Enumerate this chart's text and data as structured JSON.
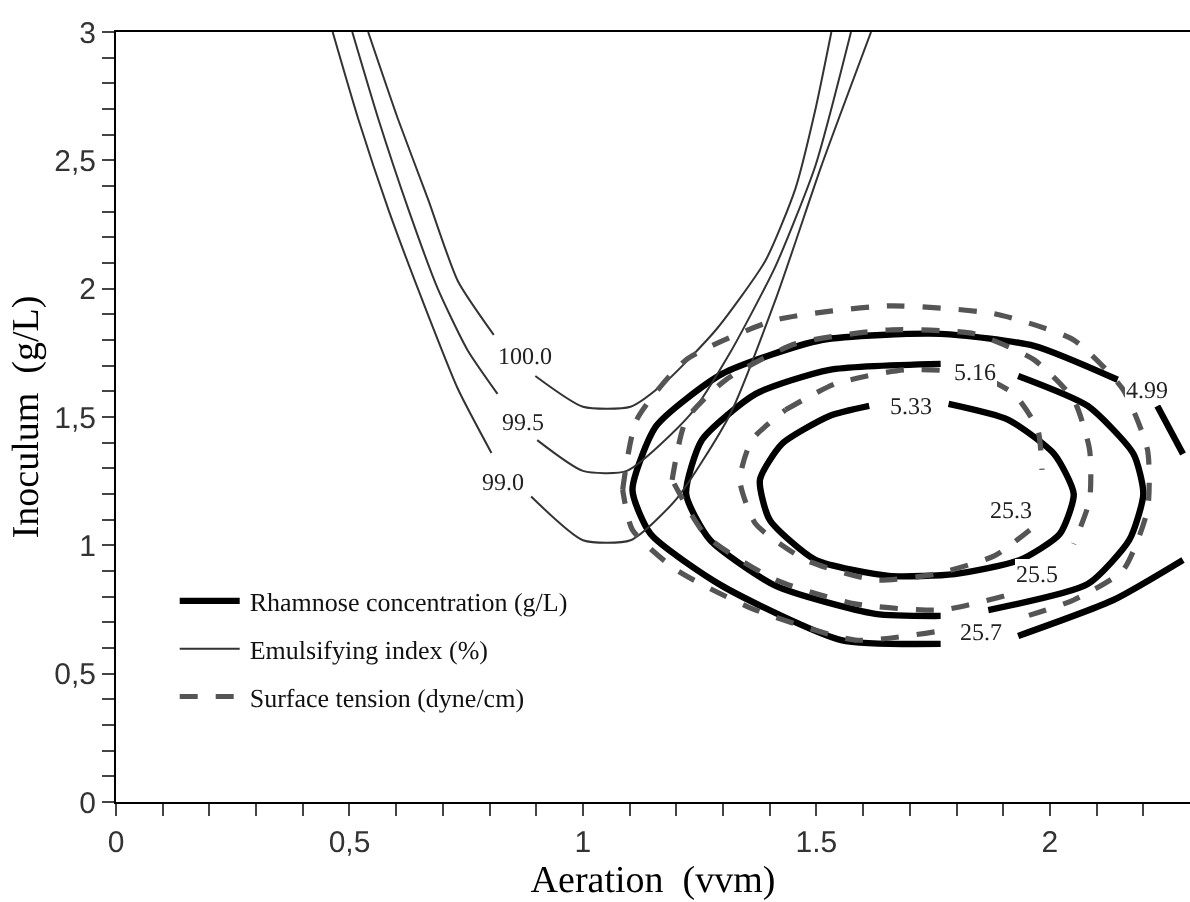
{
  "chart_data": {
    "type": "line",
    "xlabel": "Aeration  (vvm)",
    "ylabel": "Inoculum  (g/L)",
    "xlim": [
      0,
      2.3
    ],
    "ylim": [
      0,
      3
    ],
    "xticks": [
      0,
      {
        "value": 0.1,
        "label": null
      },
      {
        "value": 0.2,
        "label": null
      },
      {
        "value": 0.3,
        "label": null
      },
      {
        "value": 0.4,
        "label": null
      },
      {
        "value": 0.5,
        "label": "0,5"
      },
      {
        "value": 0.6,
        "label": null
      },
      {
        "value": 0.7,
        "label": null
      },
      {
        "value": 0.8,
        "label": null
      },
      {
        "value": 0.9,
        "label": null
      },
      1,
      {
        "value": 1.1,
        "label": null
      },
      {
        "value": 1.2,
        "label": null
      },
      {
        "value": 1.3,
        "label": null
      },
      {
        "value": 1.4,
        "label": null
      },
      {
        "value": 1.5,
        "label": "1.5"
      },
      {
        "value": 1.6,
        "label": null
      },
      {
        "value": 1.7,
        "label": null
      },
      {
        "value": 1.8,
        "label": null
      },
      {
        "value": 1.9,
        "label": null
      },
      2,
      {
        "value": 2.1,
        "label": null
      },
      {
        "value": 2.2,
        "label": null
      }
    ],
    "yticks": [
      0,
      {
        "value": 0.1,
        "label": null
      },
      {
        "value": 0.2,
        "label": null
      },
      {
        "value": 0.3,
        "label": null
      },
      {
        "value": 0.4,
        "label": null
      },
      {
        "value": 0.5,
        "label": "0,5"
      },
      {
        "value": 0.6,
        "label": null
      },
      {
        "value": 0.7,
        "label": null
      },
      {
        "value": 0.8,
        "label": null
      },
      {
        "value": 0.9,
        "label": null
      },
      1,
      {
        "value": 1.1,
        "label": null
      },
      {
        "value": 1.2,
        "label": null
      },
      {
        "value": 1.3,
        "label": null
      },
      {
        "value": 1.4,
        "label": null
      },
      {
        "value": 1.5,
        "label": "1,5"
      },
      {
        "value": 1.6,
        "label": null
      },
      {
        "value": 1.7,
        "label": null
      },
      {
        "value": 1.8,
        "label": null
      },
      {
        "value": 1.9,
        "label": null
      },
      2,
      {
        "value": 2.1,
        "label": null
      },
      {
        "value": 2.2,
        "label": null
      },
      {
        "value": 2.3,
        "label": null
      },
      {
        "value": 2.4,
        "label": null
      },
      {
        "value": 2.5,
        "label": "2,5"
      },
      {
        "value": 2.6,
        "label": null
      },
      {
        "value": 2.7,
        "label": null
      },
      {
        "value": 2.8,
        "label": null
      },
      {
        "value": 2.9,
        "label": null
      },
      3
    ],
    "legend": "bottom left",
    "marker": "none",
    "series": [
      {
        "name": "Rhamnose concentration (g/L)",
        "color": "#000000",
        "line_style": "solid",
        "x": [
          1.783,
          1.911,
          2.009,
          2.051,
          2.021,
          1.936,
          1.796,
          1.655,
          1.498,
          1.4,
          1.379,
          1.426,
          1.528,
          1.613
        ],
        "values": [
          1.551,
          1.489,
          1.356,
          1.2,
          1.044,
          0.943,
          0.888,
          0.881,
          0.943,
          1.099,
          1.255,
          1.395,
          1.504,
          1.543
        ]
      },
      {
        "color": "#000000",
        "line_style": "solid",
        "x": [
          1.932,
          2.081,
          2.179,
          2.2,
          2.17,
          2.081,
          1.868,
          null,
          1.766,
          1.626,
          1.413,
          1.272,
          1.221,
          1.255,
          1.37,
          1.528,
          1.766
        ],
        "values": [
          1.66,
          1.543,
          1.356,
          1.2,
          1.021,
          0.849,
          0.748,
          null,
          0.725,
          0.733,
          0.842,
          1.021,
          1.2,
          1.411,
          1.59,
          1.684,
          1.707
        ]
      },
      {
        "color": "#000000",
        "line_style": "solid",
        "x": [
          2.23,
          2.285,
          null,
          2.285,
          2.136,
          1.932,
          null,
          1.766,
          1.553,
          1.298,
          1.145,
          1.106,
          1.157,
          1.298,
          1.511,
          1.766,
          1.966,
          2.145
        ],
        "values": [
          1.543,
          1.356,
          null,
          0.943,
          0.787,
          0.647,
          null,
          0.616,
          0.631,
          0.842,
          1.044,
          1.216,
          1.465,
          1.668,
          1.8,
          1.824,
          1.777,
          1.645
        ]
      },
      {
        "name": "Emulsifying index (%)",
        "color": "#333333",
        "line_style": "solid",
        "x": [
          0.54,
          0.604,
          0.668,
          0.732,
          0.809,
          null,
          0.898,
          1.0,
          1.102,
          1.179,
          1.285,
          1.391,
          1.455,
          1.498,
          1.532
        ],
        "values": [
          3.0,
          2.66,
          2.35,
          2.03,
          1.82,
          null,
          1.66,
          1.54,
          1.54,
          1.64,
          1.84,
          2.11,
          2.39,
          2.7,
          3.0
        ]
      },
      {
        "color": "#333333",
        "line_style": "solid",
        "x": [
          0.506,
          0.562,
          0.626,
          0.689,
          0.753,
          0.817,
          null,
          0.902,
          1.0,
          1.094,
          1.23,
          1.315,
          1.413,
          1.498,
          1.574
        ],
        "values": [
          3.0,
          2.66,
          2.31,
          2.0,
          1.76,
          1.59,
          null,
          1.41,
          1.29,
          1.29,
          1.51,
          1.75,
          2.09,
          2.48,
          3.0
        ]
      },
      {
        "color": "#333333",
        "line_style": "solid",
        "x": [
          0.464,
          0.519,
          0.583,
          0.655,
          0.732,
          0.804,
          null,
          0.889,
          1.0,
          1.102,
          1.2,
          1.315,
          1.413,
          1.511,
          1.617
        ],
        "values": [
          3.0,
          2.66,
          2.31,
          1.96,
          1.61,
          1.36,
          null,
          1.19,
          1.02,
          1.02,
          1.18,
          1.51,
          1.96,
          2.48,
          3.0
        ]
      },
      {
        "name": "Surface tension (dyne/cm)",
        "color": "#555555",
        "line_style": "dashed",
        "x": [
          1.434,
          1.54,
          1.689,
          1.838,
          1.923,
          1.974,
          1.983,
          null,
          1.957,
          1.881,
          1.753,
          1.626,
          1.477,
          1.37,
          1.336,
          1.362,
          1.434
        ],
        "values": [
          1.528,
          1.629,
          1.684,
          1.668,
          1.59,
          1.45,
          1.294,
          null,
          1.06,
          0.959,
          0.888,
          0.865,
          0.943,
          1.083,
          1.255,
          1.411,
          1.528
        ]
      },
      {
        "color": "#555555",
        "line_style": "dashed",
        "x": [
          1.191,
          1.221,
          1.306,
          1.455,
          1.655,
          1.838,
          1.966,
          2.051,
          2.085,
          2.085,
          2.051,
          null,
          1.902,
          1.766,
          1.583,
          1.413,
          1.264,
          1.191
        ],
        "values": [
          1.255,
          1.489,
          1.645,
          1.785,
          1.839,
          1.824,
          1.723,
          1.567,
          1.372,
          1.177,
          1.005,
          null,
          0.803,
          0.748,
          0.772,
          0.865,
          1.037,
          1.255
        ]
      },
      {
        "color": "#555555",
        "line_style": "dashed",
        "x": [
          1.085,
          1.115,
          1.221,
          1.413,
          1.655,
          1.881,
          2.051,
          2.157,
          2.209,
          2.209,
          2.157,
          2.051,
          1.923,
          null,
          1.753,
          1.583,
          1.37,
          1.2,
          1.106,
          1.085
        ],
        "values": [
          1.216,
          1.489,
          1.723,
          1.878,
          1.933,
          1.902,
          1.8,
          1.606,
          1.372,
          1.138,
          0.904,
          0.787,
          0.709,
          null,
          0.663,
          0.631,
          0.748,
          0.904,
          1.06,
          1.216
        ]
      }
    ],
    "annotations": [
      {
        "text": "100.0",
        "x": 0.877,
        "y": 1.74
      },
      {
        "text": "99.5",
        "x": 0.872,
        "y": 1.48
      },
      {
        "text": "99.0",
        "x": 0.83,
        "y": 1.25
      },
      {
        "text": "5.33",
        "x": 1.702,
        "y": 1.543
      },
      {
        "text": "5.16",
        "x": 1.838,
        "y": 1.676
      },
      {
        "text": "4.99",
        "x": 2.209,
        "y": 1.606
      },
      {
        "text": "25.3",
        "x": 1.915,
        "y": 1.138
      },
      {
        "text": "25.5",
        "x": 1.974,
        "y": 0.889
      },
      {
        "text": "25.7",
        "x": 1.851,
        "y": 0.663
      }
    ]
  }
}
